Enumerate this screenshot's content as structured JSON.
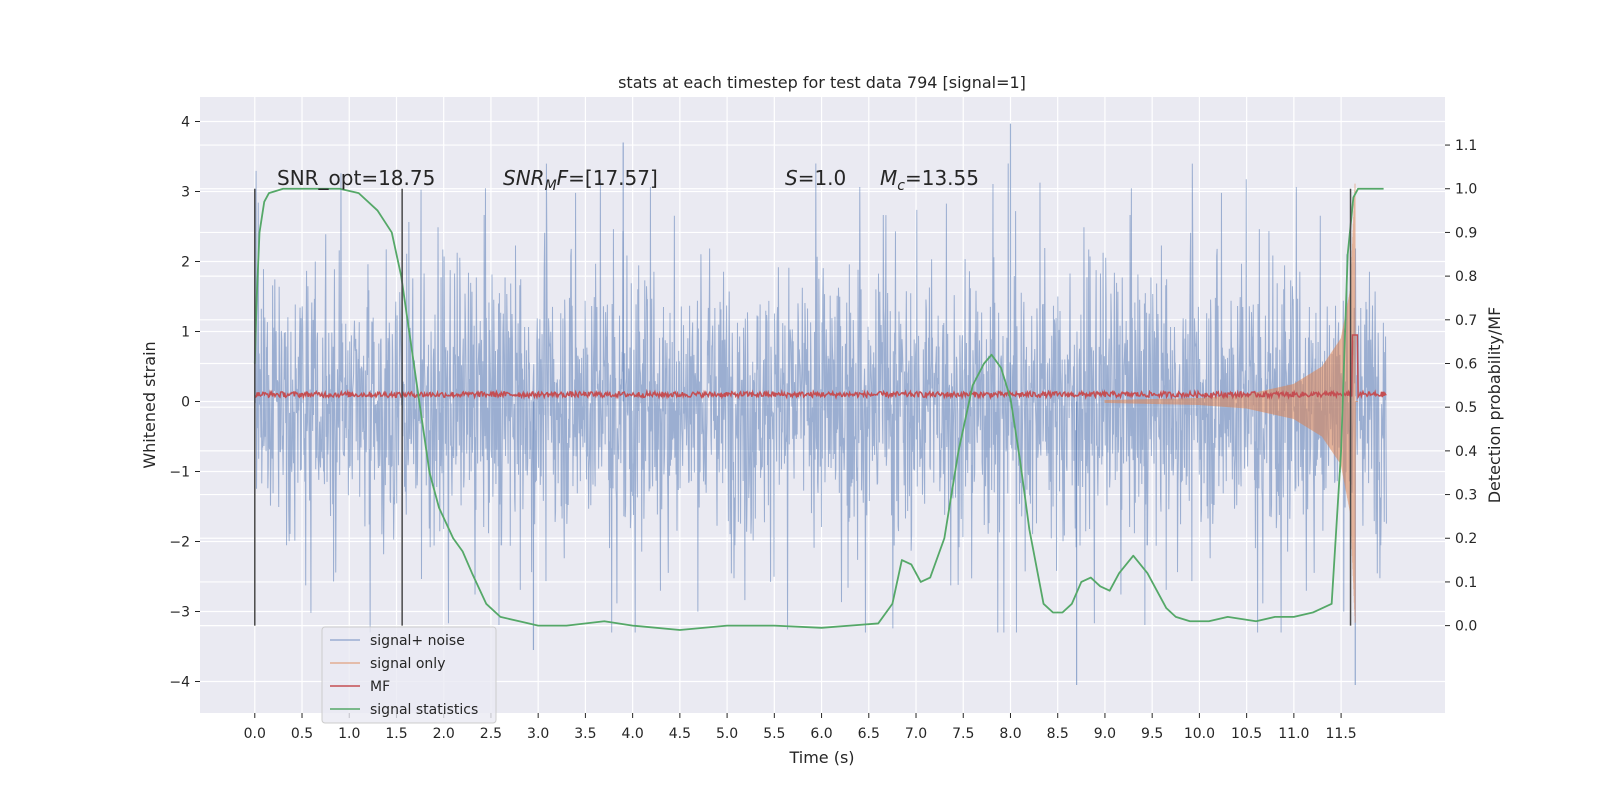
{
  "chart_data": {
    "type": "line",
    "title": "stats at each timestep for test data 794 [signal=1]",
    "xlabel": "Time (s)",
    "ylabel_left": "Whitened strain",
    "ylabel_right": "Detection probability/MF",
    "x_ticks": [
      "0.0",
      "0.5",
      "1.0",
      "1.5",
      "2.0",
      "2.5",
      "3.0",
      "3.5",
      "4.0",
      "4.5",
      "5.0",
      "5.5",
      "6.0",
      "6.5",
      "7.0",
      "7.5",
      "8.0",
      "8.5",
      "9.0",
      "9.5",
      "10.0",
      "10.5",
      "11.0",
      "11.5"
    ],
    "y_left_ticks": [
      "4",
      "3",
      "2",
      "1",
      "0",
      "−1",
      "−2",
      "−3",
      "−4"
    ],
    "y_right_ticks": [
      "1.1",
      "1.0",
      "0.9",
      "0.8",
      "0.7",
      "0.6",
      "0.5",
      "0.4",
      "0.3",
      "0.2",
      "0.1",
      "0.0"
    ],
    "xlim": [
      -0.58,
      12.6
    ],
    "ylim_left": [
      -4.45,
      4.35
    ],
    "ylim_right": [
      -0.2,
      1.21
    ],
    "grid": true,
    "legend_position": "lower-left",
    "annotations": {
      "snr_opt": "SNR_opt=18.75",
      "snr_mf_var": "SNR",
      "snr_mf_sub": "M",
      "snr_mf_tail_it": "F",
      "snr_mf_value": "=[17.57]",
      "s_var": "S",
      "s_value": "=1.0",
      "mc_var": "M",
      "mc_sub": "c",
      "mc_value": "=13.55"
    },
    "series": [
      {
        "name": "signal+ noise",
        "color": "#4c72b0",
        "noise_envelope": [
          -3.0,
          3.0
        ],
        "spike_max": 3.97,
        "spike_min": -4.05
      },
      {
        "name": "signal only",
        "color": "#dd8452",
        "chirp_envelope": [
          [
            0.0,
            0.0
          ],
          [
            9.0,
            0.02
          ],
          [
            10.0,
            0.05
          ],
          [
            10.5,
            0.1
          ],
          [
            11.0,
            0.25
          ],
          [
            11.3,
            0.5
          ],
          [
            11.5,
            0.9
          ],
          [
            11.6,
            1.6
          ],
          [
            11.65,
            3.2
          ]
        ]
      },
      {
        "name": "MF",
        "color": "#c44e52",
        "baseline": 0.1,
        "jitter": 0.04,
        "peak": [
          11.65,
          0.95
        ]
      },
      {
        "name": "signal statistics",
        "color": "#55a868",
        "x": [
          0.0,
          0.02,
          0.05,
          0.1,
          0.15,
          0.3,
          0.6,
          0.9,
          1.1,
          1.3,
          1.45,
          1.55,
          1.65,
          1.75,
          1.85,
          1.95,
          2.1,
          2.2,
          2.3,
          2.45,
          2.6,
          2.8,
          3.0,
          3.3,
          3.7,
          4.0,
          4.5,
          5.0,
          5.5,
          6.0,
          6.3,
          6.6,
          6.75,
          6.85,
          6.95,
          7.05,
          7.15,
          7.3,
          7.45,
          7.6,
          7.72,
          7.8,
          7.9,
          8.0,
          8.1,
          8.2,
          8.35,
          8.45,
          8.55,
          8.65,
          8.75,
          8.85,
          8.95,
          9.05,
          9.15,
          9.3,
          9.45,
          9.55,
          9.65,
          9.75,
          9.9,
          10.1,
          10.3,
          10.6,
          10.8,
          11.0,
          11.2,
          11.4,
          11.5,
          11.57,
          11.63,
          11.68,
          11.75,
          11.85,
          11.95
        ],
        "y": [
          0.6,
          0.75,
          0.9,
          0.97,
          0.99,
          1.0,
          1.0,
          1.0,
          0.99,
          0.95,
          0.9,
          0.8,
          0.65,
          0.5,
          0.35,
          0.27,
          0.2,
          0.17,
          0.12,
          0.05,
          0.02,
          0.01,
          0.0,
          0.0,
          0.01,
          0.0,
          -0.01,
          0.0,
          0.0,
          -0.005,
          0.0,
          0.005,
          0.05,
          0.15,
          0.14,
          0.1,
          0.11,
          0.2,
          0.4,
          0.55,
          0.6,
          0.62,
          0.59,
          0.52,
          0.38,
          0.22,
          0.05,
          0.03,
          0.03,
          0.05,
          0.1,
          0.11,
          0.09,
          0.08,
          0.12,
          0.16,
          0.12,
          0.08,
          0.04,
          0.02,
          0.01,
          0.01,
          0.02,
          0.01,
          0.02,
          0.02,
          0.03,
          0.05,
          0.4,
          0.85,
          0.98,
          1.0,
          1.0,
          1.0,
          1.0
        ]
      }
    ],
    "vertical_markers": [
      0.0,
      1.56,
      11.6
    ]
  }
}
